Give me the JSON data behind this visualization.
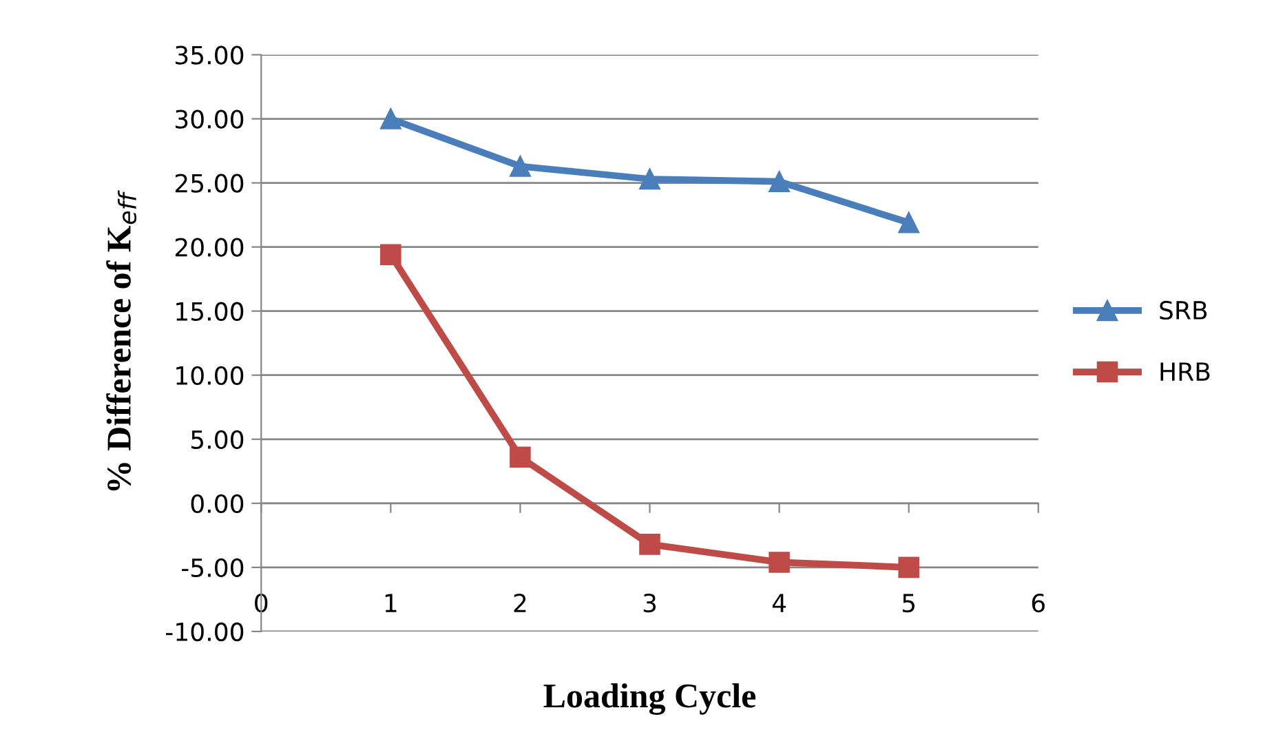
{
  "chart_data": {
    "type": "line",
    "xlabel": "Loading Cycle",
    "ylabel": "% Difference of K$_{eff}$",
    "x": [
      1,
      2,
      3,
      4,
      5
    ],
    "series": [
      {
        "name": "SRB",
        "color": "#4a7ebb",
        "marker": "triangle",
        "values": [
          30.0,
          26.3,
          25.3,
          25.1,
          21.9
        ]
      },
      {
        "name": "HRB",
        "color": "#be4b48",
        "marker": "square",
        "values": [
          19.4,
          3.6,
          -3.2,
          -4.6,
          -5.0
        ]
      }
    ],
    "xlim": [
      0,
      6
    ],
    "xticks": [
      0,
      1,
      2,
      3,
      4,
      5,
      6
    ],
    "ylim": [
      -10,
      35
    ],
    "yticks": [
      {
        "value": -10,
        "label": "-10.00"
      },
      {
        "value": -5,
        "label": "-5.00"
      },
      {
        "value": 0,
        "label": "0.00"
      },
      {
        "value": 5,
        "label": "5.00"
      },
      {
        "value": 10,
        "label": "10.00"
      },
      {
        "value": 15,
        "label": "15.00"
      },
      {
        "value": 20,
        "label": "20.00"
      },
      {
        "value": 25,
        "label": "25.00"
      },
      {
        "value": 30,
        "label": "30.00"
      },
      {
        "value": 35,
        "label": "35.00"
      }
    ],
    "grid": "y",
    "legend": "right",
    "line_style": "solid"
  }
}
